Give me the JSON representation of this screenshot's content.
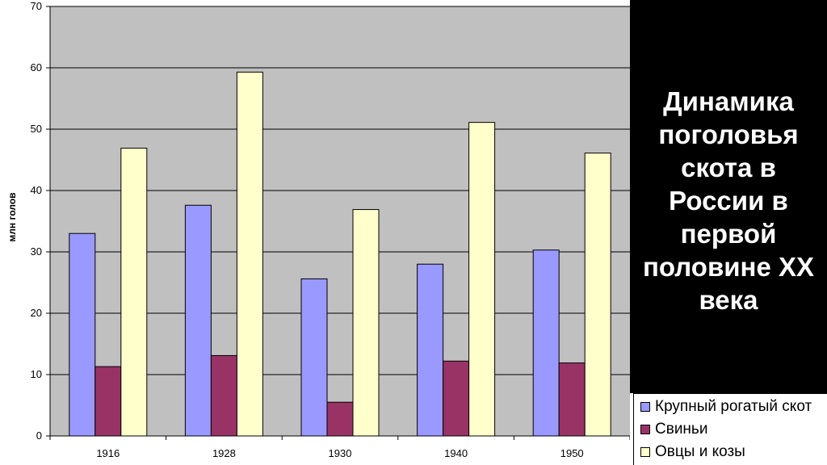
{
  "chart_data": {
    "type": "bar",
    "title": "Динамика поголовья скота в России в первой половине XX века",
    "ylabel": "млн голов",
    "xlabel": "",
    "ylim": [
      0,
      70
    ],
    "yticks": [
      "0",
      "10",
      "20",
      "30",
      "40",
      "50",
      "60",
      "70"
    ],
    "categories": [
      "1916",
      "1928",
      "1930",
      "1940",
      "1950"
    ],
    "series": [
      {
        "name": "Крупный рогатый скот",
        "color": "#9999ff",
        "values": [
          33.0,
          37.6,
          25.6,
          28.0,
          30.3
        ]
      },
      {
        "name": "Свиньи",
        "color": "#993366",
        "values": [
          11.3,
          13.1,
          5.5,
          12.2,
          11.9
        ]
      },
      {
        "name": "Овцы и козы",
        "color": "#ffffcc",
        "values": [
          46.9,
          59.3,
          36.9,
          51.1,
          46.1
        ]
      }
    ],
    "grid": true,
    "legend": "bottom-right",
    "plot_background": "#c0c0c0"
  }
}
